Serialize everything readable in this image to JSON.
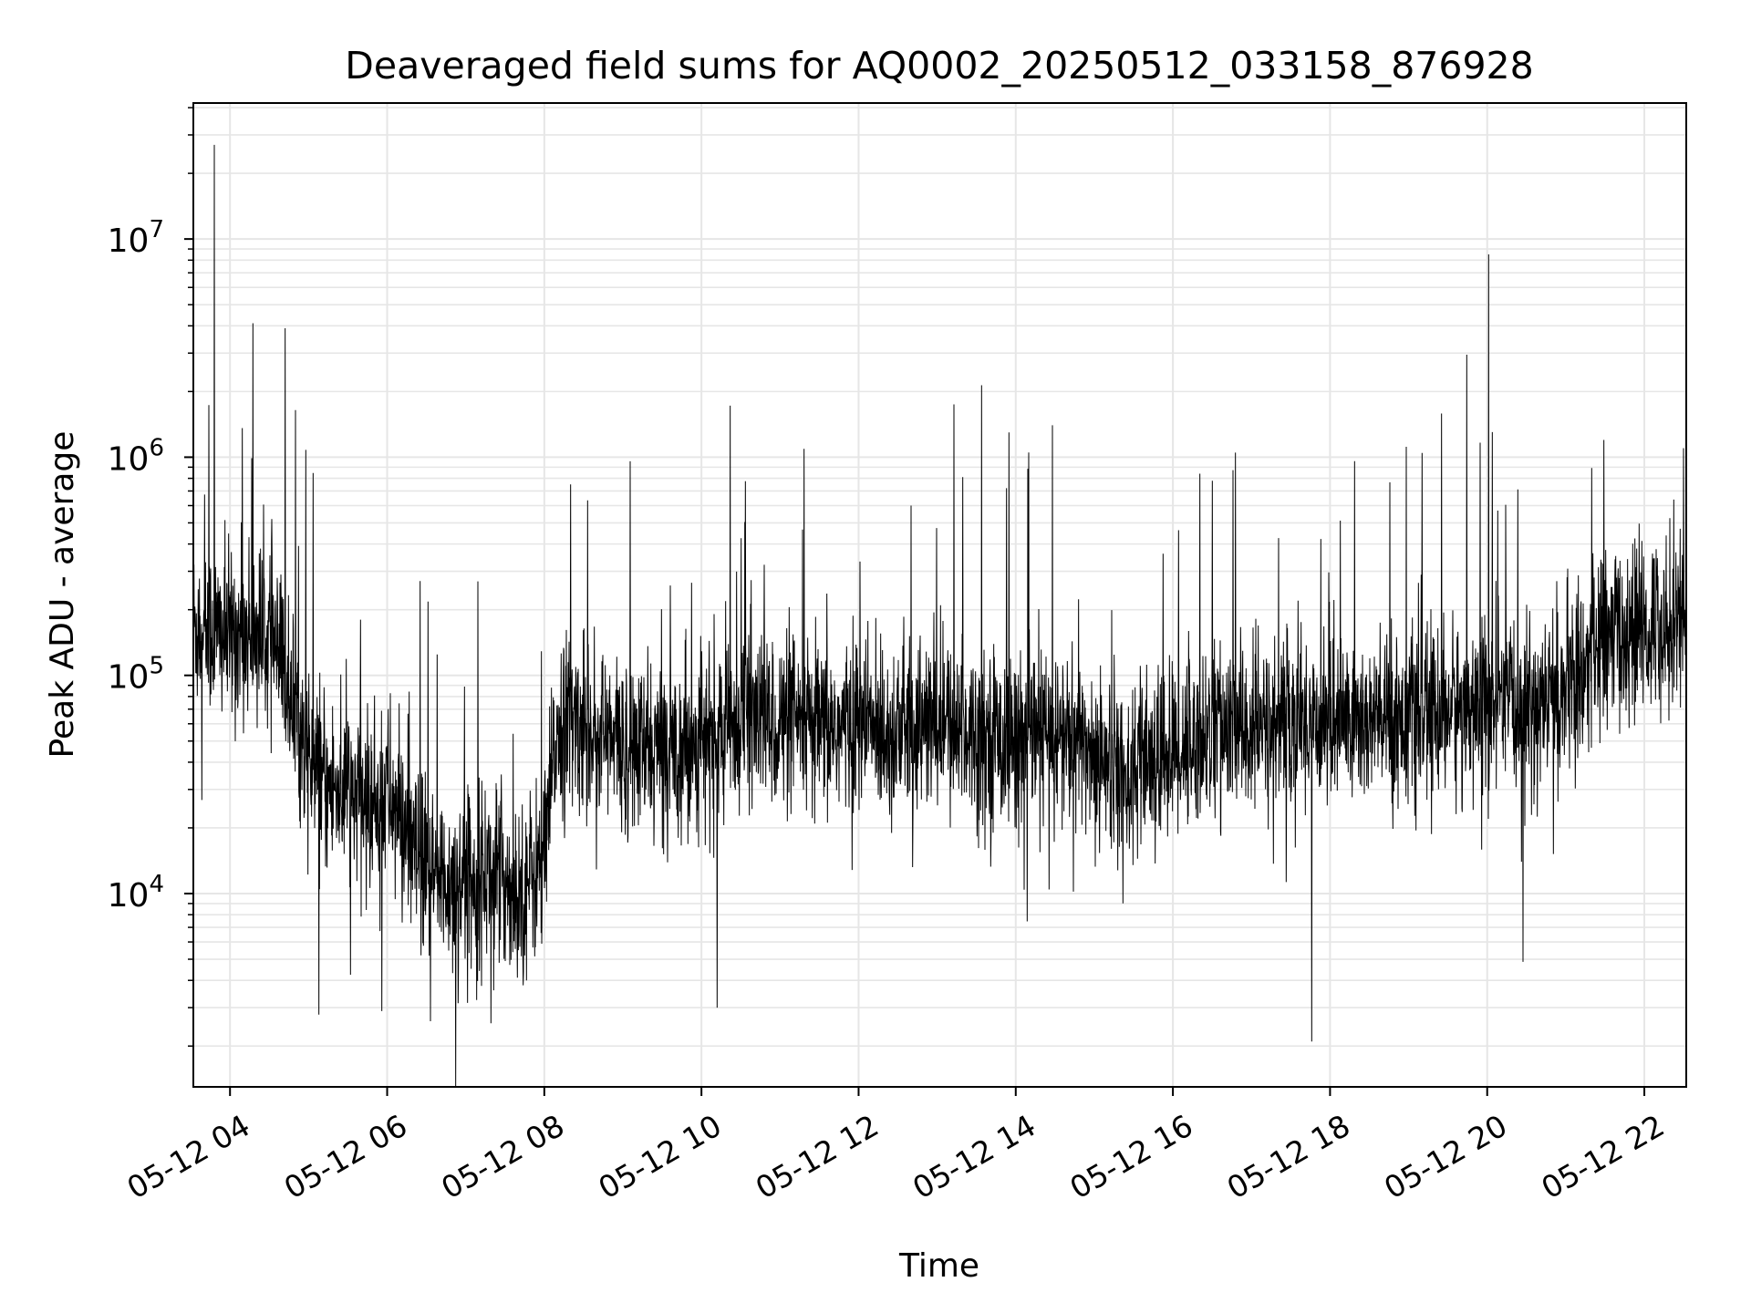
{
  "chart_data": {
    "type": "line",
    "title": "Deaveraged field sums for AQ0002_20250512_033158_876928",
    "xlabel": "Time",
    "ylabel": "Peak ADU - average",
    "x_scale": "time",
    "y_scale": "log",
    "xlim": [
      "05-12 03:32",
      "05-12 22:32"
    ],
    "ylim": [
      1300,
      42000000
    ],
    "xticks": [
      {
        "t": "05-12 04:00",
        "label": "05-12 04"
      },
      {
        "t": "05-12 06:00",
        "label": "05-12 06"
      },
      {
        "t": "05-12 08:00",
        "label": "05-12 08"
      },
      {
        "t": "05-12 10:00",
        "label": "05-12 10"
      },
      {
        "t": "05-12 12:00",
        "label": "05-12 12"
      },
      {
        "t": "05-12 14:00",
        "label": "05-12 14"
      },
      {
        "t": "05-12 16:00",
        "label": "05-12 16"
      },
      {
        "t": "05-12 18:00",
        "label": "05-12 18"
      },
      {
        "t": "05-12 20:00",
        "label": "05-12 20"
      },
      {
        "t": "05-12 22:00",
        "label": "05-12 22"
      }
    ],
    "yticks": [
      {
        "v": 10000,
        "base": "10",
        "exp": "4"
      },
      {
        "v": 100000,
        "base": "10",
        "exp": "5"
      },
      {
        "v": 1000000,
        "base": "10",
        "exp": "6"
      },
      {
        "v": 10000000,
        "base": "10",
        "exp": "7"
      }
    ],
    "grid": true,
    "line_color": "#000000",
    "grid_color": "#e6e6e6",
    "series": [
      {
        "x": [
          "05-12 03:32",
          "05-12 03:45",
          "05-12 04:00",
          "05-12 04:15",
          "05-12 04:30",
          "05-12 04:45",
          "05-12 05:00",
          "05-12 05:15",
          "05-12 05:30",
          "05-12 05:45",
          "05-12 06:00",
          "05-12 06:20",
          "05-12 06:40",
          "05-12 07:00",
          "05-12 07:20",
          "05-12 07:40",
          "05-12 08:00",
          "05-12 08:10",
          "05-12 08:30",
          "05-12 08:50",
          "05-12 09:10",
          "05-12 09:30",
          "05-12 09:50",
          "05-12 10:10",
          "05-12 10:30",
          "05-12 11:00",
          "05-12 11:30",
          "05-12 12:00",
          "05-12 12:30",
          "05-12 13:00",
          "05-12 13:30",
          "05-12 14:00",
          "05-12 14:30",
          "05-12 15:00",
          "05-12 15:30",
          "05-12 16:00",
          "05-12 16:30",
          "05-12 17:00",
          "05-12 17:30",
          "05-12 18:00",
          "05-12 18:30",
          "05-12 19:00",
          "05-12 19:30",
          "05-12 20:00",
          "05-12 20:30",
          "05-12 21:00",
          "05-12 21:30",
          "05-12 22:00",
          "05-12 22:32"
        ],
        "y": [
          170000,
          160000,
          150000,
          160000,
          150000,
          90000,
          40000,
          30000,
          30000,
          25000,
          30000,
          15000,
          11000,
          12000,
          13000,
          10000,
          14000,
          60000,
          60000,
          50000,
          45000,
          45000,
          50000,
          50000,
          65000,
          60000,
          55000,
          60000,
          55000,
          60000,
          55000,
          50000,
          55000,
          45000,
          35000,
          45000,
          55000,
          55000,
          60000,
          65000,
          60000,
          65000,
          70000,
          75000,
          70000,
          85000,
          150000,
          160000,
          200000
        ],
        "spikes": [
          {
            "x": "05-12 03:48",
            "y": 27000000
          },
          {
            "x": "05-12 04:42",
            "y": 3900000
          },
          {
            "x": "05-12 20:01",
            "y": 8500000
          },
          {
            "x": "05-12 14:28",
            "y": 1400000
          },
          {
            "x": "05-12 14:10",
            "y": 1050000
          },
          {
            "x": "05-12 04:58",
            "y": 1080000
          },
          {
            "x": "05-12 21:29",
            "y": 1200000
          },
          {
            "x": "05-12 22:30",
            "y": 1100000
          },
          {
            "x": "05-12 08:20",
            "y": 750000
          },
          {
            "x": "05-12 12:40",
            "y": 600000
          },
          {
            "x": "05-12 16:30",
            "y": 780000
          },
          {
            "x": "05-12 17:46",
            "y": 2100
          },
          {
            "x": "05-12 10:12",
            "y": 3000
          },
          {
            "x": "05-12 06:33",
            "y": 2600
          }
        ]
      }
    ]
  }
}
